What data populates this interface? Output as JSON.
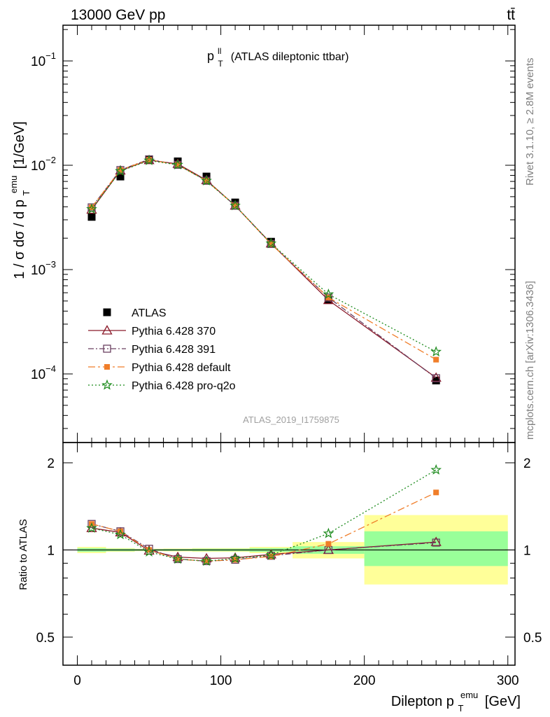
{
  "header": {
    "left": "13000 GeV pp",
    "right": "tt̄"
  },
  "side_labels": {
    "rivet": "Rivet 3.1.10, ≥ 2.8M events",
    "mcplots": "mcplots.cern.ch [arXiv:1306.3436]"
  },
  "chart_data": [
    {
      "type": "scatter",
      "panel": "main",
      "title_main": "p",
      "title_sup": "ll",
      "title_sub": "T",
      "title_rest": "(ATLAS dileptonic ttbar)",
      "ylabel": "1 / σ dσ / d p",
      "ylabel_sup": "emu",
      "ylabel_sub": "T",
      "ylabel_unit": "[1/GeV]",
      "watermark": "ATLAS_2019_I1759875",
      "yscale": "log",
      "xlim": [
        -10,
        305
      ],
      "ylim": [
        2.2e-05,
        0.22
      ],
      "yticks": [
        {
          "v": 0.1,
          "label": "10",
          "exp": "−1"
        },
        {
          "v": 0.01,
          "label": "10",
          "exp": "−2"
        },
        {
          "v": 0.001,
          "label": "10",
          "exp": "−3"
        },
        {
          "v": 0.0001,
          "label": "10",
          "exp": "−4"
        }
      ],
      "legend_position": "lower-left",
      "x": [
        10,
        30,
        50,
        70,
        90,
        110,
        135,
        175,
        250
      ],
      "series": [
        {
          "name": "ATLAS",
          "color": "#000000",
          "marker": "square-filled",
          "line": "none",
          "values": [
            0.0032,
            0.0078,
            0.0113,
            0.0109,
            0.0078,
            0.0044,
            0.00185,
            0.00051,
            8.65e-05
          ]
        },
        {
          "name": "Pythia 6.428 370",
          "color": "#8b1a2a",
          "marker": "triangle-open",
          "line": "solid",
          "values": [
            0.00375,
            0.0089,
            0.0112,
            0.0103,
            0.0072,
            0.0041,
            0.00178,
            0.00051,
            9.2e-05
          ]
        },
        {
          "name": "Pythia 6.428 391",
          "color": "#6b4060",
          "marker": "square-open",
          "line": "dashdot",
          "values": [
            0.00395,
            0.009,
            0.0114,
            0.0101,
            0.0071,
            0.0041,
            0.00176,
            0.00054,
            9.1e-05
          ]
        },
        {
          "name": "Pythia 6.428 default",
          "color": "#f07e2a",
          "marker": "square-small-filled",
          "line": "dashdotlong",
          "values": [
            0.00395,
            0.009,
            0.0113,
            0.0101,
            0.0071,
            0.0041,
            0.00176,
            0.00054,
            0.000137
          ]
        },
        {
          "name": "Pythia 6.428 pro-q2o",
          "color": "#1b8a1b",
          "marker": "star-open",
          "line": "dotted",
          "values": [
            0.0038,
            0.0088,
            0.0111,
            0.0101,
            0.0071,
            0.0041,
            0.00178,
            0.00058,
            0.000163
          ]
        }
      ]
    },
    {
      "type": "scatter",
      "panel": "ratio",
      "ylabel": "Ratio to ATLAS",
      "xlabel": "Dilepton p",
      "xlabel_sup": "emu",
      "xlabel_sub": "T",
      "xlabel_unit": "[GeV]",
      "yscale": "log",
      "xlim": [
        -10,
        305
      ],
      "ylim": [
        0.4,
        2.35
      ],
      "xticks": [
        0,
        100,
        200,
        300
      ],
      "yticks": [
        {
          "v": 0.5,
          "label": "0.5"
        },
        {
          "v": 1,
          "label": "1"
        },
        {
          "v": 2,
          "label": "2"
        }
      ],
      "reference": 1,
      "bands": [
        {
          "x0": 0,
          "x1": 20,
          "inner": [
            0.985,
            1.015
          ],
          "outer": [
            0.975,
            1.025
          ]
        },
        {
          "x0": 20,
          "x1": 40,
          "inner": [
            0.99,
            1.01
          ],
          "outer": [
            0.985,
            1.015
          ]
        },
        {
          "x0": 40,
          "x1": 60,
          "inner": [
            0.993,
            1.007
          ],
          "outer": [
            0.99,
            1.01
          ]
        },
        {
          "x0": 60,
          "x1": 80,
          "inner": [
            0.992,
            1.008
          ],
          "outer": [
            0.988,
            1.012
          ]
        },
        {
          "x0": 80,
          "x1": 100,
          "inner": [
            0.99,
            1.01
          ],
          "outer": [
            0.985,
            1.015
          ]
        },
        {
          "x0": 100,
          "x1": 120,
          "inner": [
            0.99,
            1.01
          ],
          "outer": [
            0.985,
            1.015
          ]
        },
        {
          "x0": 120,
          "x1": 150,
          "inner": [
            0.985,
            1.015
          ],
          "outer": [
            0.975,
            1.025
          ]
        },
        {
          "x0": 150,
          "x1": 200,
          "inner": [
            0.97,
            1.03
          ],
          "outer": [
            0.935,
            1.065
          ]
        },
        {
          "x0": 200,
          "x1": 300,
          "inner": [
            0.88,
            1.16
          ],
          "outer": [
            0.76,
            1.32
          ]
        }
      ],
      "series": [
        {
          "name": "Pythia 6.428 370",
          "color": "#8b1a2a",
          "marker": "triangle-open",
          "line": "solid",
          "values": [
            1.19,
            1.15,
            0.995,
            0.945,
            0.935,
            0.94,
            0.965,
            1.0,
            1.065
          ]
        },
        {
          "name": "Pythia 6.428 391",
          "color": "#6b4060",
          "marker": "square-open",
          "line": "dashdot",
          "values": [
            1.23,
            1.16,
            1.01,
            0.93,
            0.915,
            0.925,
            0.955,
            1.0,
            1.06
          ]
        },
        {
          "name": "Pythia 6.428 default",
          "color": "#f07e2a",
          "marker": "square-small-filled",
          "line": "dashdotlong",
          "values": [
            1.23,
            1.16,
            1.0,
            0.93,
            0.915,
            0.925,
            0.95,
            1.05,
            1.58
          ]
        },
        {
          "name": "Pythia 6.428 pro-q2o",
          "color": "#1b8a1b",
          "marker": "star-open",
          "line": "dotted",
          "values": [
            1.19,
            1.13,
            0.985,
            0.93,
            0.915,
            0.935,
            0.96,
            1.14,
            1.89
          ]
        }
      ]
    }
  ]
}
